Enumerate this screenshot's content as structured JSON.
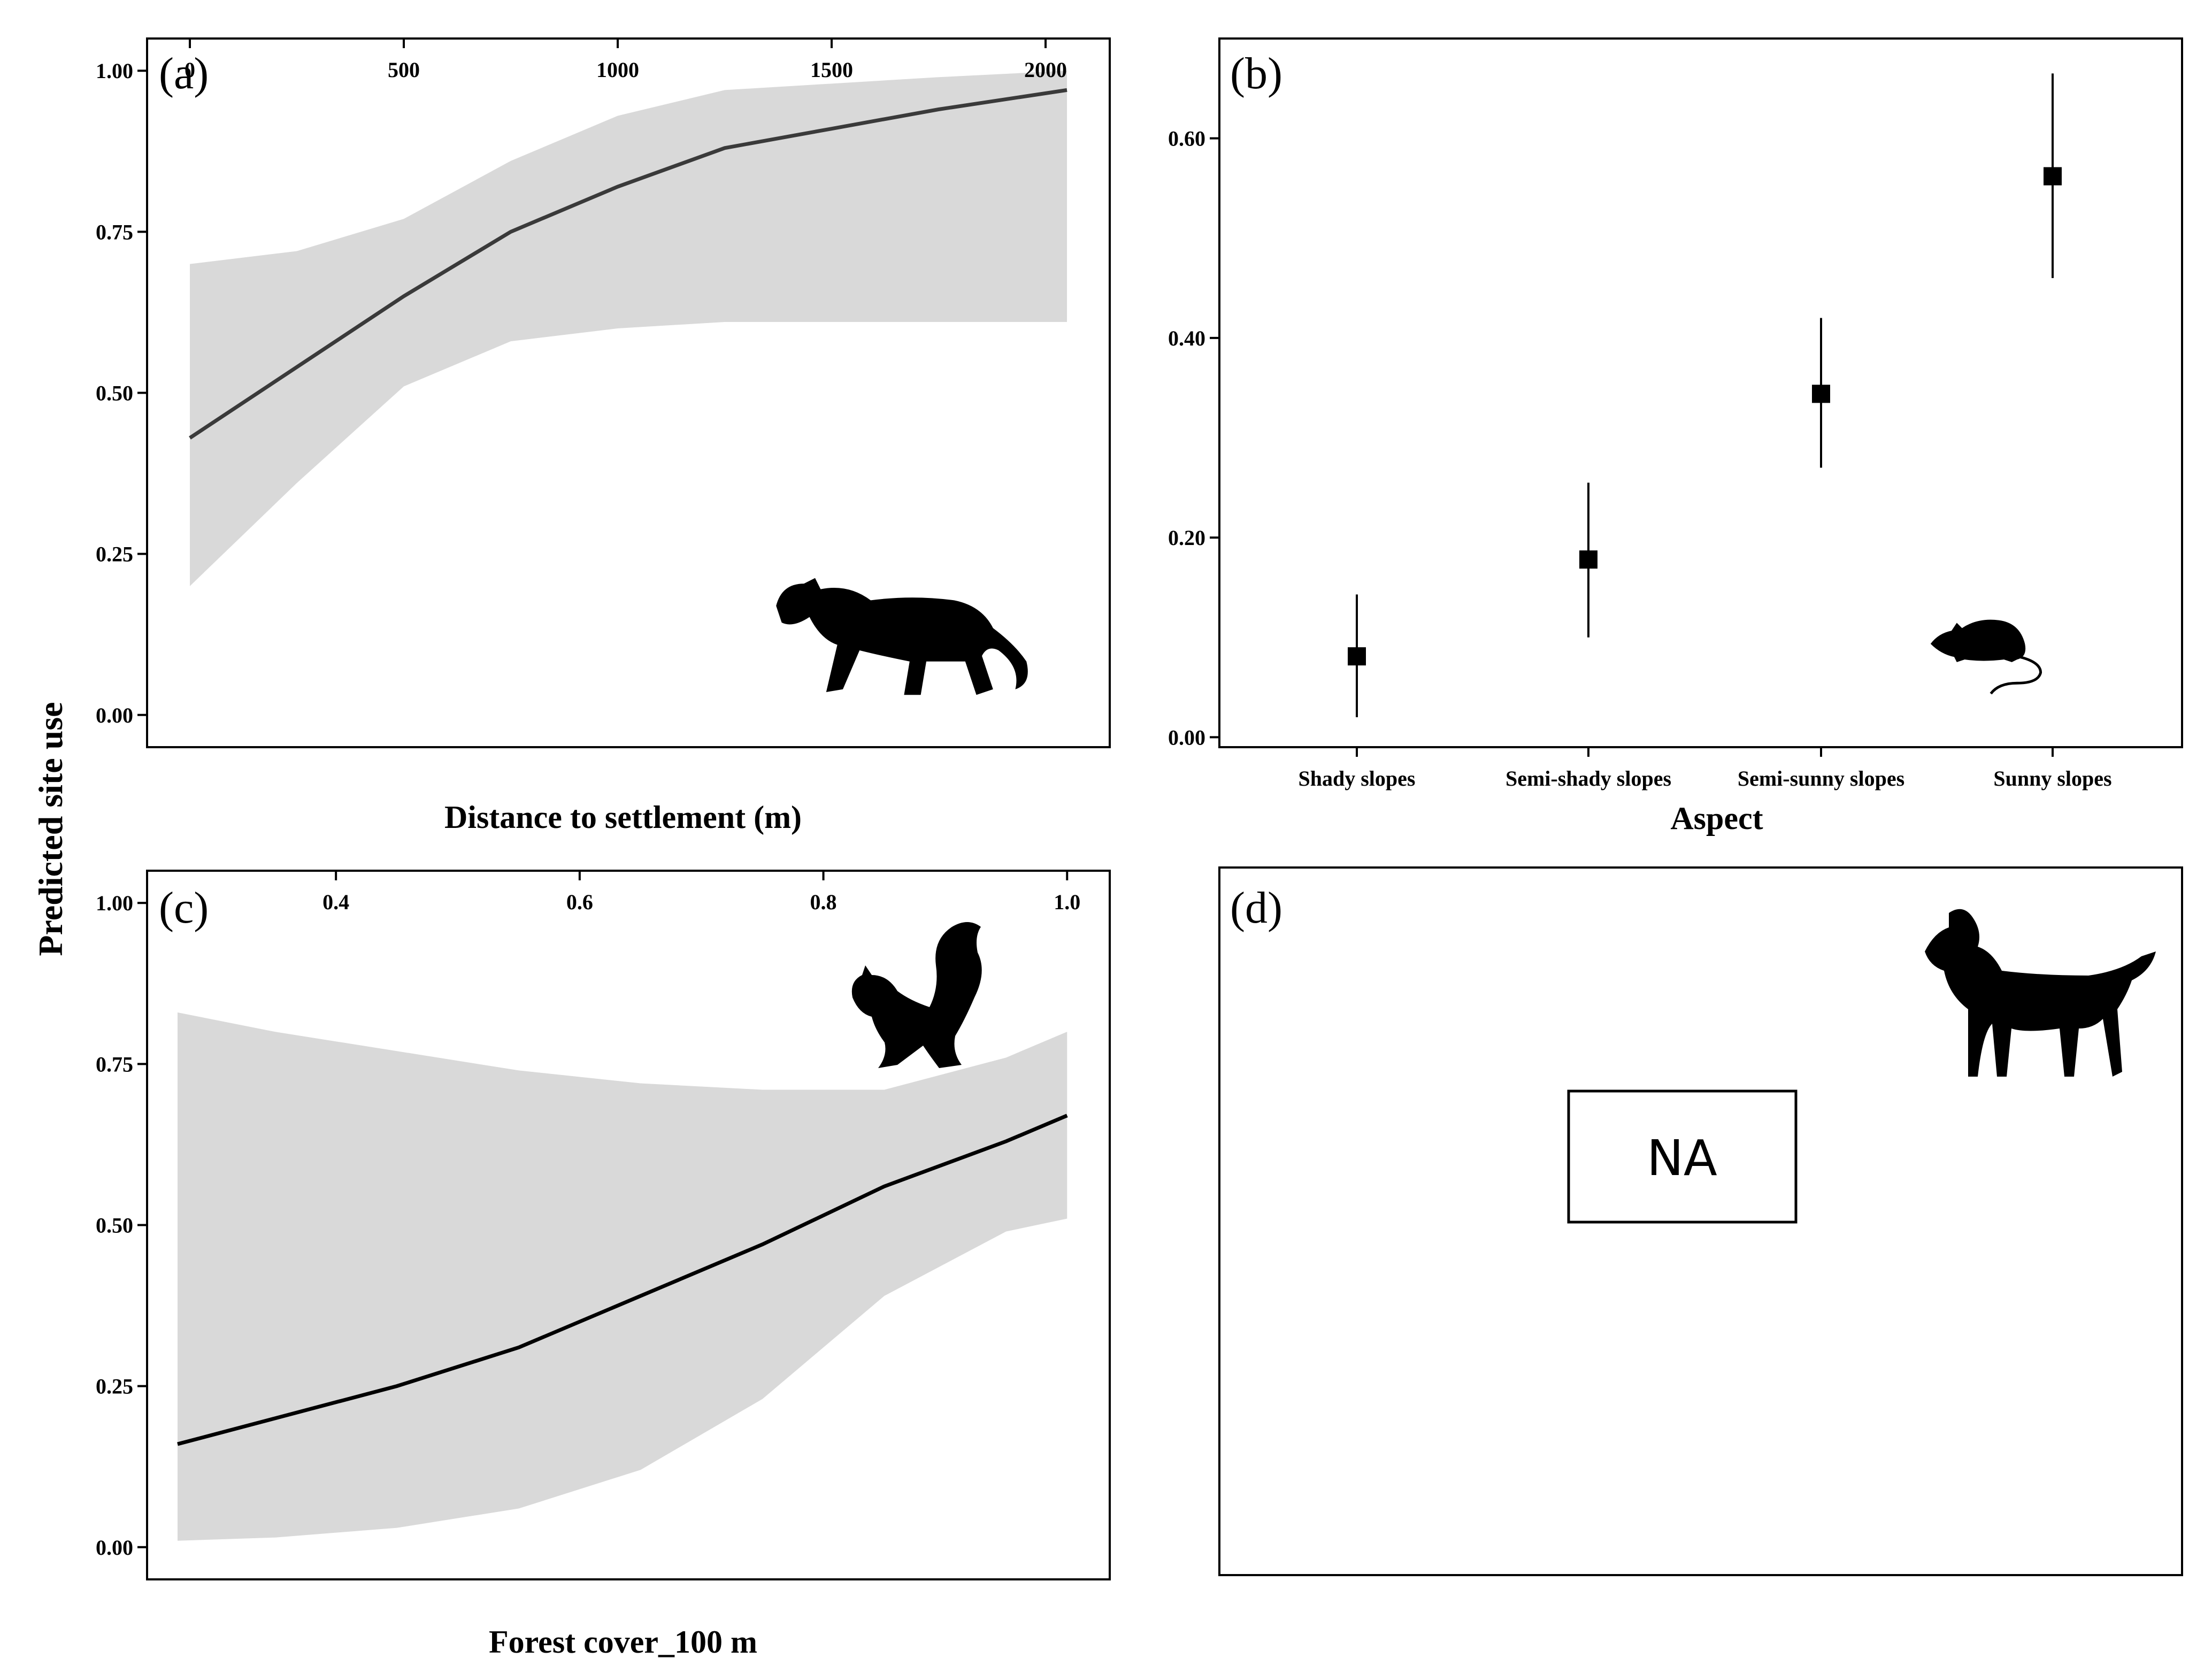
{
  "figure": {
    "y_title": "Predicted site use"
  },
  "chart_data": [
    {
      "panel": "(a)",
      "type": "line",
      "xlabel": "Distance to settlement (m)",
      "ylabel": "Predicted site use",
      "xlim": [
        -100,
        2150
      ],
      "ylim": [
        -0.05,
        1.05
      ],
      "xticks": [
        0,
        500,
        1000,
        1500,
        2000
      ],
      "xtick_labels": [
        "0",
        "500",
        "1000",
        "1500",
        "2000"
      ],
      "yticks": [
        0,
        0.25,
        0.5,
        0.75,
        1.0
      ],
      "ytick_labels": [
        "0.00",
        "0.25",
        "0.50",
        "0.75",
        "1.00"
      ],
      "series": [
        {
          "name": "fit",
          "x": [
            0,
            250,
            500,
            750,
            1000,
            1250,
            1500,
            1750,
            2050
          ],
          "y": [
            0.43,
            0.54,
            0.65,
            0.75,
            0.82,
            0.88,
            0.91,
            0.94,
            0.97
          ]
        },
        {
          "name": "ci_lower",
          "x": [
            0,
            250,
            500,
            750,
            1000,
            1250,
            1500,
            1750,
            2050
          ],
          "y": [
            0.2,
            0.36,
            0.51,
            0.58,
            0.6,
            0.61,
            0.61,
            0.61,
            0.61
          ]
        },
        {
          "name": "ci_upper",
          "x": [
            0,
            250,
            500,
            750,
            1000,
            1250,
            1500,
            1750,
            2050
          ],
          "y": [
            0.7,
            0.72,
            0.77,
            0.86,
            0.93,
            0.97,
            0.98,
            0.99,
            1.0
          ]
        }
      ],
      "icon": "puma-silhouette-icon"
    },
    {
      "panel": "(b)",
      "type": "scatter",
      "xlabel": "Aspect",
      "ylabel": "Predicted site use",
      "categories": [
        "Shady slopes",
        "Semi-shady slopes",
        "Semi-sunny slopes",
        "Sunny slopes"
      ],
      "values": [
        0.081,
        0.178,
        0.344,
        0.562
      ],
      "lower": [
        0.02,
        0.1,
        0.27,
        0.46
      ],
      "upper": [
        0.143,
        0.255,
        0.42,
        0.665
      ],
      "ylim": [
        -0.01,
        0.7
      ],
      "yticks": [
        0,
        0.2,
        0.4,
        0.6
      ],
      "ytick_labels": [
        "0.00",
        "0.20",
        "0.40",
        "0.60"
      ],
      "icon": "rat-silhouette-icon"
    },
    {
      "panel": "(c)",
      "type": "line",
      "xlabel": "Forest cover_100 m",
      "ylabel": "Predicted site use",
      "xlim": [
        0.245,
        1.035
      ],
      "ylim": [
        -0.05,
        1.05
      ],
      "xticks": [
        0.4,
        0.6,
        0.8,
        1.0
      ],
      "xtick_labels": [
        "0.4",
        "0.6",
        "0.8",
        "1.0"
      ],
      "yticks": [
        0,
        0.25,
        0.5,
        0.75,
        1.0
      ],
      "ytick_labels": [
        "0.00",
        "0.25",
        "0.50",
        "0.75",
        "1.00"
      ],
      "series": [
        {
          "name": "fit",
          "x": [
            0.27,
            0.35,
            0.45,
            0.55,
            0.65,
            0.75,
            0.85,
            0.95,
            1.0
          ],
          "y": [
            0.16,
            0.2,
            0.25,
            0.31,
            0.39,
            0.47,
            0.56,
            0.63,
            0.67
          ]
        },
        {
          "name": "ci_lower",
          "x": [
            0.27,
            0.35,
            0.45,
            0.55,
            0.65,
            0.75,
            0.85,
            0.95,
            1.0
          ],
          "y": [
            0.01,
            0.015,
            0.03,
            0.06,
            0.12,
            0.23,
            0.39,
            0.49,
            0.51
          ]
        },
        {
          "name": "ci_upper",
          "x": [
            0.27,
            0.35,
            0.45,
            0.55,
            0.65,
            0.75,
            0.85,
            0.95,
            1.0
          ],
          "y": [
            0.83,
            0.8,
            0.77,
            0.74,
            0.72,
            0.71,
            0.71,
            0.76,
            0.8
          ]
        }
      ],
      "icon": "squirrel-silhouette-icon"
    },
    {
      "panel": "(d)",
      "type": "table",
      "text": "NA",
      "icon": "goat-silhouette-icon"
    }
  ]
}
